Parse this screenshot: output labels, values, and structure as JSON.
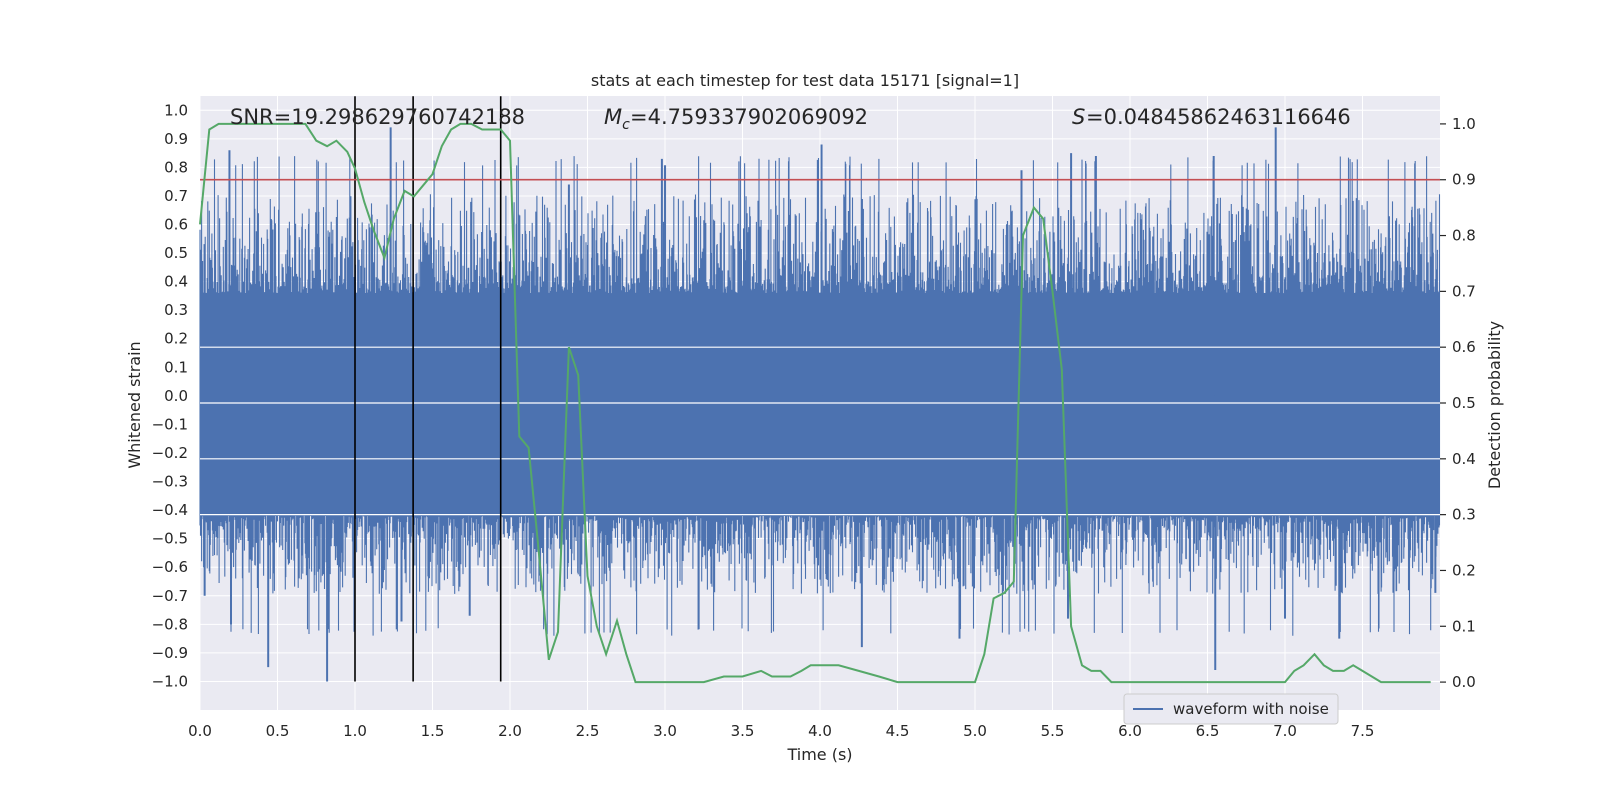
{
  "chart_data": {
    "type": "line",
    "title": "stats at each timestep for test data 15171 [signal=1]",
    "xlabel": "Time (s)",
    "ylabel_left": "Whitened strain",
    "ylabel_right": "Detection probability",
    "xlim": [
      0.0,
      8.0
    ],
    "ylim_left": [
      -1.1,
      1.05
    ],
    "ylim_right": [
      -0.05,
      1.05
    ],
    "x_ticks": [
      "0.0",
      "0.5",
      "1.0",
      "1.5",
      "2.0",
      "2.5",
      "3.0",
      "3.5",
      "4.0",
      "4.5",
      "5.0",
      "5.5",
      "6.0",
      "6.5",
      "7.0",
      "7.5"
    ],
    "y_left_ticks": [
      "1.0",
      "0.9",
      "0.8",
      "0.7",
      "0.6",
      "0.5",
      "0.4",
      "0.3",
      "0.2",
      "0.1",
      "0.0",
      "−0.1",
      "−0.2",
      "−0.3",
      "−0.4",
      "−0.5",
      "−0.6",
      "−0.7",
      "−0.8",
      "−0.9",
      "−1.0"
    ],
    "y_right_ticks": [
      "1.0",
      "0.9",
      "0.8",
      "0.7",
      "0.6",
      "0.5",
      "0.4",
      "0.3",
      "0.2",
      "0.1",
      "0.0"
    ],
    "annotations": {
      "snr": "SNR=19.298629760742188",
      "mc": "=4.759337902069092",
      "s": "=0.04845862463116646"
    },
    "legend": {
      "label": "waveform with noise",
      "position": "lower-right"
    },
    "threshold": {
      "value": 0.9,
      "axis": "right",
      "color": "#c44e52"
    },
    "vertical_lines": [
      1.0,
      1.375,
      1.94
    ],
    "series": [
      {
        "name": "waveform with noise",
        "color": "#4c72b0",
        "axis": "left",
        "kind": "noise",
        "band": [
          -0.42,
          0.36
        ],
        "spikes": [
          {
            "x": 0.19,
            "y": 0.86
          },
          {
            "x": 1.23,
            "y": 0.94
          },
          {
            "x": 2.38,
            "y": 0.74
          },
          {
            "x": 2.98,
            "y": 0.83
          },
          {
            "x": 4.01,
            "y": 0.88
          },
          {
            "x": 5.3,
            "y": 0.79
          },
          {
            "x": 5.62,
            "y": 0.85
          },
          {
            "x": 5.78,
            "y": 0.84
          },
          {
            "x": 6.54,
            "y": 0.84
          },
          {
            "x": 6.94,
            "y": 0.94
          },
          {
            "x": 0.44,
            "y": -0.95
          },
          {
            "x": 0.82,
            "y": -1.0
          },
          {
            "x": 0.2,
            "y": -0.8
          },
          {
            "x": 1.3,
            "y": -0.79
          },
          {
            "x": 1.74,
            "y": -0.77
          },
          {
            "x": 4.27,
            "y": -0.88
          },
          {
            "x": 4.9,
            "y": -0.85
          },
          {
            "x": 5.6,
            "y": -0.78
          },
          {
            "x": 6.55,
            "y": -0.96
          },
          {
            "x": 7.35,
            "y": -0.85
          },
          {
            "x": 7.0,
            "y": -0.78
          },
          {
            "x": 0.03,
            "y": -0.7
          },
          {
            "x": 7.97,
            "y": -0.69
          }
        ]
      },
      {
        "name": "",
        "color": "#55a868",
        "axis": "right",
        "x": [
          0.0,
          0.06,
          0.12,
          0.18,
          0.3,
          0.5,
          0.68,
          0.75,
          0.82,
          0.88,
          0.95,
          1.0,
          1.06,
          1.12,
          1.19,
          1.25,
          1.32,
          1.38,
          1.44,
          1.5,
          1.56,
          1.62,
          1.68,
          1.75,
          1.82,
          1.88,
          1.94,
          2.0,
          2.06,
          2.12,
          2.18,
          2.25,
          2.31,
          2.38,
          2.44,
          2.5,
          2.56,
          2.62,
          2.69,
          2.75,
          2.81,
          2.88,
          3.0,
          3.25,
          3.38,
          3.5,
          3.62,
          3.69,
          3.81,
          3.88,
          3.94,
          4.0,
          4.12,
          4.25,
          4.38,
          4.5,
          4.62,
          4.75,
          4.88,
          4.94,
          5.0,
          5.06,
          5.12,
          5.19,
          5.25,
          5.31,
          5.38,
          5.44,
          5.5,
          5.56,
          5.62,
          5.69,
          5.75,
          5.81,
          5.88,
          6.0,
          6.25,
          6.5,
          6.75,
          6.88,
          7.0,
          7.06,
          7.12,
          7.19,
          7.25,
          7.31,
          7.38,
          7.44,
          7.5,
          7.56,
          7.62,
          7.75,
          7.94
        ],
        "y": [
          0.82,
          0.99,
          1.0,
          1.0,
          1.0,
          1.0,
          1.0,
          0.97,
          0.96,
          0.97,
          0.95,
          0.92,
          0.86,
          0.81,
          0.76,
          0.83,
          0.88,
          0.87,
          0.89,
          0.91,
          0.96,
          0.99,
          1.0,
          1.0,
          0.99,
          0.99,
          0.99,
          0.97,
          0.44,
          0.42,
          0.25,
          0.04,
          0.09,
          0.6,
          0.55,
          0.19,
          0.1,
          0.05,
          0.11,
          0.05,
          0.0,
          0.0,
          0.0,
          0.0,
          0.01,
          0.01,
          0.02,
          0.01,
          0.01,
          0.02,
          0.03,
          0.03,
          0.03,
          0.02,
          0.01,
          0.0,
          0.0,
          0.0,
          0.0,
          0.0,
          0.0,
          0.05,
          0.15,
          0.16,
          0.18,
          0.8,
          0.85,
          0.83,
          0.7,
          0.56,
          0.1,
          0.03,
          0.02,
          0.02,
          0.0,
          0.0,
          0.0,
          0.0,
          0.0,
          0.0,
          0.0,
          0.02,
          0.03,
          0.05,
          0.03,
          0.02,
          0.02,
          0.03,
          0.02,
          0.01,
          0.0,
          0.0,
          0.0
        ]
      }
    ]
  }
}
